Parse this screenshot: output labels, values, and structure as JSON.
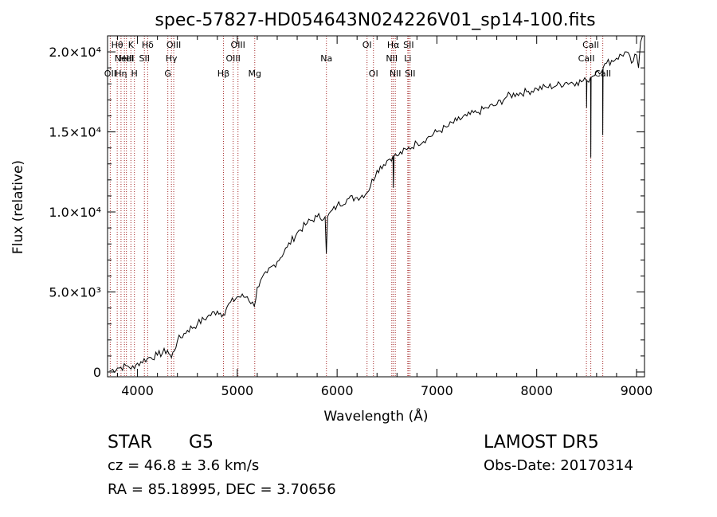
{
  "chart_data": {
    "type": "line",
    "title": "spec-57827-HD054643N024226V01_sp14-100.fits",
    "xlabel": "Wavelength (Å)",
    "ylabel": "Flux (relative)",
    "xlim": [
      3700,
      9080
    ],
    "ylim": [
      -300,
      21000
    ],
    "x_ticks": [
      {
        "value": 4000,
        "label": "4000"
      },
      {
        "value": 5000,
        "label": "5000"
      },
      {
        "value": 6000,
        "label": "6000"
      },
      {
        "value": 7000,
        "label": "7000"
      },
      {
        "value": 8000,
        "label": "8000"
      },
      {
        "value": 9000,
        "label": "9000"
      }
    ],
    "y_ticks": [
      {
        "value": 0,
        "label": "0"
      },
      {
        "value": 5000,
        "label": "5.0×10³"
      },
      {
        "value": 10000,
        "label": "1.0×10⁴"
      },
      {
        "value": 15000,
        "label": "1.5×10⁴"
      },
      {
        "value": 20000,
        "label": "2.0×10⁴"
      }
    ],
    "grid": false,
    "series": [
      {
        "values": [
          [
            3720,
            60
          ],
          [
            3800,
            250
          ],
          [
            3900,
            380
          ],
          [
            3970,
            200
          ],
          [
            4000,
            550
          ],
          [
            4100,
            850
          ],
          [
            4200,
            1050
          ],
          [
            4300,
            1350
          ],
          [
            4340,
            900
          ],
          [
            4400,
            1950
          ],
          [
            4500,
            2600
          ],
          [
            4600,
            3000
          ],
          [
            4700,
            3450
          ],
          [
            4800,
            3800
          ],
          [
            4860,
            3600
          ],
          [
            4900,
            4100
          ],
          [
            5000,
            4700
          ],
          [
            5100,
            4700
          ],
          [
            5170,
            4100
          ],
          [
            5200,
            5300
          ],
          [
            5300,
            6200
          ],
          [
            5400,
            6900
          ],
          [
            5500,
            7800
          ],
          [
            5600,
            8700
          ],
          [
            5700,
            9300
          ],
          [
            5800,
            9700
          ],
          [
            5880,
            9700
          ],
          [
            5892,
            7400
          ],
          [
            5905,
            9700
          ],
          [
            6000,
            10400
          ],
          [
            6100,
            10800
          ],
          [
            6200,
            10900
          ],
          [
            6300,
            11200
          ],
          [
            6400,
            12600
          ],
          [
            6500,
            13200
          ],
          [
            6560,
            13500
          ],
          [
            6563,
            11500
          ],
          [
            6570,
            13500
          ],
          [
            6600,
            13500
          ],
          [
            6700,
            13900
          ],
          [
            6800,
            14300
          ],
          [
            6900,
            14600
          ],
          [
            7000,
            15000
          ],
          [
            7100,
            15300
          ],
          [
            7200,
            15700
          ],
          [
            7300,
            16000
          ],
          [
            7400,
            16200
          ],
          [
            7500,
            16500
          ],
          [
            7600,
            16700
          ],
          [
            7700,
            17200
          ],
          [
            7800,
            17400
          ],
          [
            7900,
            17500
          ],
          [
            8000,
            17700
          ],
          [
            8100,
            17800
          ],
          [
            8200,
            17900
          ],
          [
            8300,
            18100
          ],
          [
            8400,
            18100
          ],
          [
            8498,
            18200
          ],
          [
            8500,
            16500
          ],
          [
            8503,
            18200
          ],
          [
            8540,
            18400
          ],
          [
            8542,
            13400
          ],
          [
            8545,
            18400
          ],
          [
            8600,
            18800
          ],
          [
            8660,
            18900
          ],
          [
            8662,
            14800
          ],
          [
            8665,
            19000
          ],
          [
            8700,
            19300
          ],
          [
            8800,
            19600
          ],
          [
            8900,
            20000
          ],
          [
            8950,
            19300
          ],
          [
            9000,
            19800
          ],
          [
            9020,
            19000
          ],
          [
            9040,
            20600
          ],
          [
            9060,
            21000
          ]
        ]
      }
    ],
    "line_markers": [
      {
        "wl": 3727,
        "label": "OII",
        "row": 2
      },
      {
        "wl": 3797,
        "label": "Hθ",
        "row": 0
      },
      {
        "wl": 3835,
        "label": "Hη",
        "row": 2
      },
      {
        "wl": 3869,
        "label": "NeIII",
        "row": 1
      },
      {
        "wl": 3889,
        "label": "HeI",
        "row": 1
      },
      {
        "wl": 3934,
        "label": "K",
        "row": 0
      },
      {
        "wl": 3969,
        "label": "H",
        "row": 2
      },
      {
        "wl": 4069,
        "label": "SII",
        "row": 1
      },
      {
        "wl": 4102,
        "label": "Hδ",
        "row": 0
      },
      {
        "wl": 4304,
        "label": "G",
        "row": 2
      },
      {
        "wl": 4340,
        "label": "Hγ",
        "row": 1
      },
      {
        "wl": 4363,
        "label": "OIII",
        "row": 0
      },
      {
        "wl": 4861,
        "label": "Hβ",
        "row": 2
      },
      {
        "wl": 4959,
        "label": "OIII",
        "row": 1
      },
      {
        "wl": 5007,
        "label": "OIII",
        "row": 0
      },
      {
        "wl": 5175,
        "label": "Mg",
        "row": 2
      },
      {
        "wl": 5893,
        "label": "Na",
        "row": 1
      },
      {
        "wl": 6300,
        "label": "OI",
        "row": 0
      },
      {
        "wl": 6364,
        "label": "OI",
        "row": 2
      },
      {
        "wl": 6548,
        "label": "NII",
        "row": 1
      },
      {
        "wl": 6563,
        "label": "Hα",
        "row": 0
      },
      {
        "wl": 6583,
        "label": "NII",
        "row": 2
      },
      {
        "wl": 6708,
        "label": "Li",
        "row": 1
      },
      {
        "wl": 6716,
        "label": "SII",
        "row": 0
      },
      {
        "wl": 6731,
        "label": "SII",
        "row": 2
      },
      {
        "wl": 8498,
        "label": "CaII",
        "row": 1
      },
      {
        "wl": 8542,
        "label": "CaII",
        "row": 0
      },
      {
        "wl": 8662,
        "label": "CaII",
        "row": 2
      }
    ],
    "marker_color": "#a52a2a",
    "line_color": "#000000"
  },
  "info": {
    "object_class": "STAR",
    "subclass": "G5",
    "survey": "LAMOST  DR5",
    "cz": "cz = 46.8 ± 3.6 km/s",
    "obs_date": "Obs-Date: 20170314",
    "radec": "RA =  85.18995, DEC =   3.70656"
  }
}
